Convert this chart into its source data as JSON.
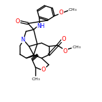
{
  "background_color": "#ffffff",
  "bond_color": "#000000",
  "atom_colors": {
    "O": "#ff0000",
    "N": "#0000ff",
    "C": "#000000"
  },
  "figsize": [
    1.5,
    1.5
  ],
  "dpi": 100,
  "xlim": [
    0,
    1
  ],
  "ylim": [
    0,
    1
  ]
}
